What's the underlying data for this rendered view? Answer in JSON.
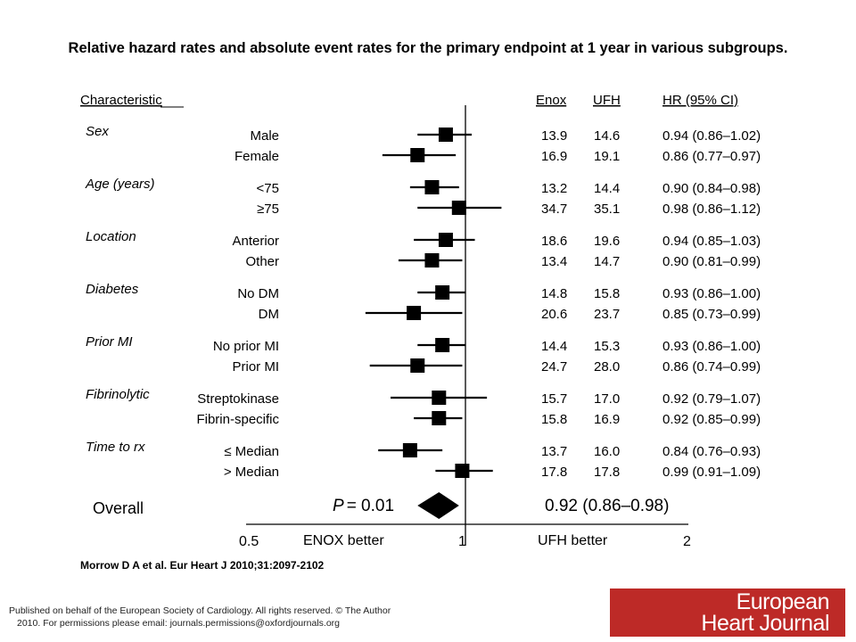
{
  "title": "Relative hazard rates and absolute event rates for the primary endpoint at 1 year in various subgroups.",
  "citation": "Morrow D A et al. Eur Heart J 2010;31:2097-2102",
  "footer": {
    "line1": "Published on behalf of the European Society of Cardiology. All rights reserved. © The Author",
    "line2": "2010. For permissions please email: journals.permissions@oxfordjournals.org"
  },
  "logo": {
    "line1": "European",
    "line2": "Heart Journal",
    "color": "#bd2a27"
  },
  "chart_data": {
    "type": "forest",
    "headers": {
      "characteristic": "Characteristic",
      "enox": "Enox",
      "ufh": "UFH",
      "hr": "HR (95% CI)"
    },
    "x_scale": "log",
    "xlim": [
      0.5,
      2
    ],
    "ticks": [
      "0.5",
      "1",
      "2"
    ],
    "reference_line": 1,
    "favor_left": "ENOX better",
    "favor_right": "UFH better",
    "groups": [
      {
        "name": "Sex",
        "rows": [
          {
            "label": "Male",
            "enox": "13.9",
            "ufh": "14.6",
            "hr_text": "0.94 (0.86–1.02)",
            "hr": 0.94,
            "lo": 0.86,
            "hi": 1.02
          },
          {
            "label": "Female",
            "enox": "16.9",
            "ufh": "19.1",
            "hr_text": "0.86 (0.77–0.97)",
            "hr": 0.86,
            "lo": 0.77,
            "hi": 0.97
          }
        ]
      },
      {
        "name": "Age (years)",
        "rows": [
          {
            "label": "<75",
            "enox": "13.2",
            "ufh": "14.4",
            "hr_text": "0.90 (0.84–0.98)",
            "hr": 0.9,
            "lo": 0.84,
            "hi": 0.98
          },
          {
            "label": "≥75",
            "enox": "34.7",
            "ufh": "35.1",
            "hr_text": "0.98 (0.86–1.12)",
            "hr": 0.98,
            "lo": 0.86,
            "hi": 1.12
          }
        ]
      },
      {
        "name": "Location",
        "rows": [
          {
            "label": "Anterior",
            "enox": "18.6",
            "ufh": "19.6",
            "hr_text": "0.94 (0.85–1.03)",
            "hr": 0.94,
            "lo": 0.85,
            "hi": 1.03
          },
          {
            "label": "Other",
            "enox": "13.4",
            "ufh": "14.7",
            "hr_text": "0.90 (0.81–0.99)",
            "hr": 0.9,
            "lo": 0.81,
            "hi": 0.99
          }
        ]
      },
      {
        "name": "Diabetes",
        "rows": [
          {
            "label": "No DM",
            "enox": "14.8",
            "ufh": "15.8",
            "hr_text": "0.93 (0.86–1.00)",
            "hr": 0.93,
            "lo": 0.86,
            "hi": 1.0
          },
          {
            "label": "DM",
            "enox": "20.6",
            "ufh": "23.7",
            "hr_text": "0.85 (0.73–0.99)",
            "hr": 0.85,
            "lo": 0.73,
            "hi": 0.99
          }
        ]
      },
      {
        "name": "Prior MI",
        "rows": [
          {
            "label": "No prior MI",
            "enox": "14.4",
            "ufh": "15.3",
            "hr_text": "0.93 (0.86–1.00)",
            "hr": 0.93,
            "lo": 0.86,
            "hi": 1.0
          },
          {
            "label": "Prior MI",
            "enox": "24.7",
            "ufh": "28.0",
            "hr_text": "0.86 (0.74–0.99)",
            "hr": 0.86,
            "lo": 0.74,
            "hi": 0.99
          }
        ]
      },
      {
        "name": "Fibrinolytic",
        "rows": [
          {
            "label": "Streptokinase",
            "enox": "15.7",
            "ufh": "17.0",
            "hr_text": "0.92 (0.79–1.07)",
            "hr": 0.92,
            "lo": 0.79,
            "hi": 1.07
          },
          {
            "label": "Fibrin-specific",
            "enox": "15.8",
            "ufh": "16.9",
            "hr_text": "0.92 (0.85–0.99)",
            "hr": 0.92,
            "lo": 0.85,
            "hi": 0.99
          }
        ]
      },
      {
        "name": "Time to rx",
        "rows": [
          {
            "label": "≤ Median",
            "enox": "13.7",
            "ufh": "16.0",
            "hr_text": "0.84 (0.76–0.93)",
            "hr": 0.84,
            "lo": 0.76,
            "hi": 0.93
          },
          {
            "label": "> Median",
            "enox": "17.8",
            "ufh": "17.8",
            "hr_text": "0.99 (0.91–1.09)",
            "hr": 0.99,
            "lo": 0.91,
            "hi": 1.09
          }
        ]
      }
    ],
    "overall": {
      "label": "Overall",
      "p_label": "P",
      "p_value": "= 0.01",
      "hr_text": "0.92 (0.86–0.98)",
      "hr": 0.92,
      "lo": 0.86,
      "hi": 0.98
    }
  }
}
